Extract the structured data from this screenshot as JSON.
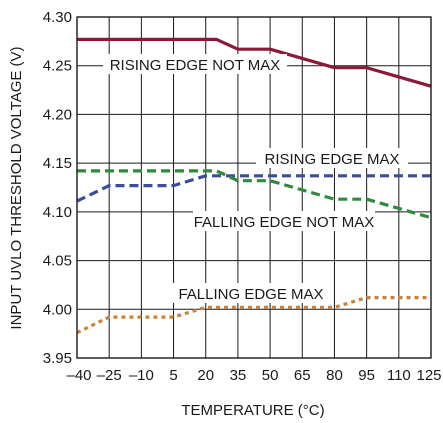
{
  "chart_data": {
    "type": "line",
    "xlabel": "TEMPERATURE (°C)",
    "ylabel": "INPUT UVLO THRESHOLD VOLTAGE (V)",
    "xlim": [
      -40,
      125
    ],
    "ylim": [
      3.95,
      4.3
    ],
    "x_ticks": [
      "–40",
      "–25",
      "–10",
      "5",
      "20",
      "35",
      "50",
      "65",
      "80",
      "95",
      "110",
      "125"
    ],
    "y_ticks": [
      "3.95",
      "4.00",
      "4.05",
      "4.10",
      "4.15",
      "4.20",
      "4.25",
      "4.30"
    ],
    "grid": true,
    "series": [
      {
        "name": "RISING EDGE NOT MAX",
        "color": "#8b1a3a",
        "style": "solid",
        "x": [
          -40,
          25,
          35,
          50,
          80,
          95,
          125
        ],
        "y": [
          4.277,
          4.277,
          4.267,
          4.267,
          4.248,
          4.248,
          4.229
        ]
      },
      {
        "name": "RISING EDGE MAX",
        "color": "#3a4f9c",
        "style": "dashed",
        "x": [
          -40,
          -25,
          5,
          20,
          125
        ],
        "y": [
          4.111,
          4.127,
          4.127,
          4.137,
          4.137
        ]
      },
      {
        "name": "FALLING EDGE NOT MAX",
        "color": "#2e8b3e",
        "style": "dashed",
        "x": [
          -40,
          25,
          35,
          50,
          80,
          95,
          125
        ],
        "y": [
          4.142,
          4.142,
          4.132,
          4.132,
          4.113,
          4.113,
          4.094
        ]
      },
      {
        "name": "FALLING EDGE MAX",
        "color": "#c8823a",
        "style": "dotted",
        "x": [
          -40,
          -25,
          5,
          20,
          80,
          95,
          125
        ],
        "y": [
          3.976,
          3.992,
          3.992,
          4.002,
          4.002,
          4.012,
          4.012
        ]
      }
    ]
  }
}
